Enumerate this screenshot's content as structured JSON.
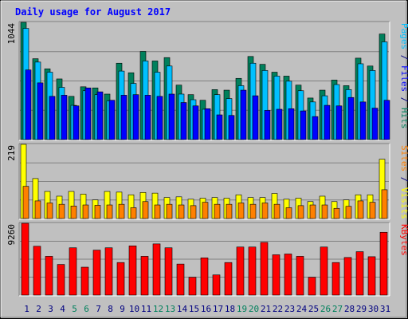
{
  "title": "Daily usage for August 2017",
  "colors": {
    "hits": "#00805c",
    "files": "#00c0ff",
    "pages": "#0000ff",
    "visits": "#ffff00",
    "sites": "#ff8000",
    "kbytes": "#ff0000",
    "title": "#0000ff",
    "weekend": "#00805c",
    "weekday": "#000080",
    "panel_bg": "#c0c0c0"
  },
  "chart_data": [
    {
      "type": "bar",
      "panel": "hits_files_pages",
      "ylabel_max": "1044",
      "ylim": [
        0,
        1044
      ],
      "right_label": [
        {
          "text": "Pages",
          "color": "#00c0ff"
        },
        {
          "text": " / ",
          "color": "#000080"
        },
        {
          "text": "Files",
          "color": "#0000ff"
        },
        {
          "text": " / ",
          "color": "#000080"
        },
        {
          "text": "Hits",
          "color": "#00805c"
        }
      ],
      "categories": [
        "1",
        "2",
        "3",
        "4",
        "5",
        "6",
        "7",
        "8",
        "9",
        "10",
        "11",
        "12",
        "13",
        "14",
        "15",
        "16",
        "17",
        "18",
        "19",
        "20",
        "21",
        "22",
        "23",
        "24",
        "25",
        "26",
        "27",
        "28",
        "29",
        "30",
        "31"
      ],
      "series": [
        {
          "name": "Hits",
          "values": [
            1044,
            720,
            630,
            540,
            385,
            470,
            460,
            405,
            680,
            595,
            785,
            700,
            730,
            485,
            400,
            350,
            445,
            440,
            545,
            740,
            670,
            600,
            565,
            485,
            370,
            440,
            530,
            480,
            725,
            655,
            940
          ]
        },
        {
          "name": "Files",
          "values": [
            990,
            690,
            600,
            465,
            305,
            435,
            400,
            345,
            610,
            500,
            700,
            600,
            655,
            405,
            355,
            270,
            400,
            365,
            480,
            680,
            615,
            565,
            520,
            435,
            335,
            390,
            490,
            445,
            675,
            615,
            870
          ]
        },
        {
          "name": "Pages",
          "values": [
            620,
            505,
            385,
            395,
            300,
            460,
            425,
            350,
            395,
            400,
            395,
            385,
            405,
            330,
            300,
            275,
            220,
            215,
            440,
            390,
            260,
            270,
            275,
            255,
            205,
            305,
            300,
            375,
            335,
            280,
            350
          ]
        }
      ]
    },
    {
      "type": "bar",
      "panel": "visits_sites",
      "ylabel_max": "219",
      "ylim": [
        0,
        219
      ],
      "right_label": [
        {
          "text": "Sites",
          "color": "#ff8000"
        },
        {
          "text": " / ",
          "color": "#000080"
        },
        {
          "text": "Visits",
          "color": "#ffff00"
        }
      ],
      "categories": [
        "1",
        "2",
        "3",
        "4",
        "5",
        "6",
        "7",
        "8",
        "9",
        "10",
        "11",
        "12",
        "13",
        "14",
        "15",
        "16",
        "17",
        "18",
        "19",
        "20",
        "21",
        "22",
        "23",
        "24",
        "25",
        "26",
        "27",
        "28",
        "29",
        "30",
        "31"
      ],
      "series": [
        {
          "name": "Visits",
          "values": [
            219,
            118,
            80,
            66,
            80,
            72,
            55,
            80,
            78,
            70,
            77,
            75,
            62,
            64,
            57,
            60,
            62,
            60,
            70,
            62,
            62,
            74,
            57,
            60,
            50,
            66,
            50,
            55,
            70,
            70,
            175
          ]
        },
        {
          "name": "Sites",
          "values": [
            95,
            52,
            46,
            42,
            37,
            40,
            39,
            40,
            42,
            32,
            50,
            40,
            42,
            40,
            38,
            48,
            42,
            42,
            46,
            42,
            46,
            42,
            32,
            38,
            40,
            40,
            30,
            36,
            52,
            48,
            85
          ]
        }
      ]
    },
    {
      "type": "bar",
      "panel": "kbytes",
      "ylabel_max": "9260",
      "ylim": [
        0,
        9260
      ],
      "right_label": [
        {
          "text": "KBytes",
          "color": "#ff0000"
        }
      ],
      "categories": [
        "1",
        "2",
        "3",
        "4",
        "5",
        "6",
        "7",
        "8",
        "9",
        "10",
        "11",
        "12",
        "13",
        "14",
        "15",
        "16",
        "17",
        "18",
        "19",
        "20",
        "21",
        "22",
        "23",
        "24",
        "25",
        "26",
        "27",
        "28",
        "29",
        "30",
        "31"
      ],
      "series": [
        {
          "name": "KBytes",
          "values": [
            9260,
            6300,
            5000,
            3950,
            6100,
            3600,
            5800,
            6100,
            4200,
            6350,
            5000,
            6600,
            6100,
            4000,
            2300,
            4800,
            2600,
            4200,
            6200,
            6200,
            6800,
            5200,
            5300,
            5000,
            2300,
            6200,
            4200,
            4850,
            5600,
            4950,
            8100
          ]
        }
      ]
    }
  ],
  "x_axis": {
    "labels": [
      "1",
      "2",
      "3",
      "4",
      "5",
      "6",
      "7",
      "8",
      "9",
      "10",
      "11",
      "12",
      "13",
      "14",
      "15",
      "16",
      "17",
      "18",
      "19",
      "20",
      "21",
      "22",
      "23",
      "24",
      "25",
      "26",
      "27",
      "28",
      "29",
      "30",
      "31"
    ],
    "weekend": [
      "5",
      "6",
      "12",
      "13",
      "19",
      "20",
      "26",
      "27"
    ]
  }
}
